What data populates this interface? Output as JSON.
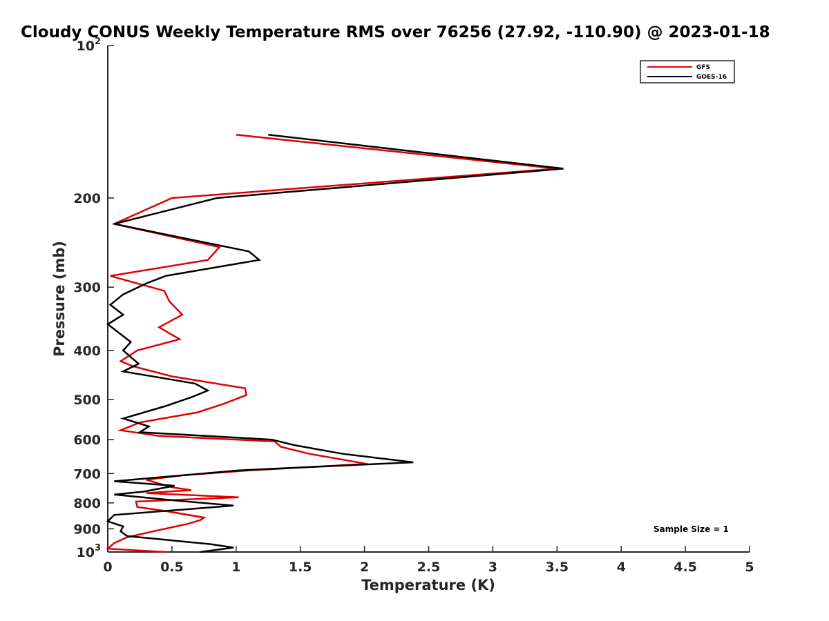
{
  "chart_data": {
    "type": "line",
    "title": "Cloudy CONUS Weekly Temperature RMS over 76256 (27.92, -110.90) @ 2023-01-18",
    "xlabel": "Temperature (K)",
    "ylabel": "Pressure (mb)",
    "xlim": [
      0,
      5
    ],
    "ylim": [
      100,
      1000
    ],
    "yscale": "log",
    "y_reversed": true,
    "xticks": [
      "0",
      "0.5",
      "1",
      "1.5",
      "2",
      "2.5",
      "3",
      "3.5",
      "4",
      "4.5",
      "5"
    ],
    "yticks": [
      {
        "value": 100,
        "base": "10",
        "exp": "2"
      },
      {
        "value": 200,
        "label": "200"
      },
      {
        "value": 300,
        "label": "300"
      },
      {
        "value": 400,
        "label": "400"
      },
      {
        "value": 500,
        "label": "500"
      },
      {
        "value": 600,
        "label": "600"
      },
      {
        "value": 700,
        "label": "700"
      },
      {
        "value": 800,
        "label": "800"
      },
      {
        "value": 900,
        "label": "900"
      },
      {
        "value": 1000,
        "base": "10",
        "exp": "3"
      }
    ],
    "legend": "top-right",
    "annotation": "Sample Size = 1",
    "series": [
      {
        "name": "GFS",
        "color": "#e00000",
        "points": [
          [
            1.0,
            150
          ],
          [
            3.5,
            175
          ],
          [
            0.5,
            200
          ],
          [
            0.05,
            225
          ],
          [
            0.87,
            250
          ],
          [
            0.78,
            265
          ],
          [
            0.02,
            285
          ],
          [
            0.44,
            305
          ],
          [
            0.48,
            320
          ],
          [
            0.58,
            340
          ],
          [
            0.4,
            360
          ],
          [
            0.56,
            380
          ],
          [
            0.23,
            400
          ],
          [
            0.1,
            420
          ],
          [
            0.2,
            430
          ],
          [
            0.5,
            450
          ],
          [
            1.07,
            475
          ],
          [
            1.08,
            490
          ],
          [
            0.9,
            510
          ],
          [
            0.7,
            530
          ],
          [
            0.25,
            555
          ],
          [
            0.1,
            575
          ],
          [
            0.4,
            590
          ],
          [
            1.3,
            605
          ],
          [
            1.35,
            620
          ],
          [
            1.57,
            640
          ],
          [
            2.02,
            670
          ],
          [
            1.1,
            690
          ],
          [
            0.6,
            705
          ],
          [
            0.3,
            720
          ],
          [
            0.5,
            745
          ],
          [
            0.65,
            755
          ],
          [
            0.3,
            765
          ],
          [
            1.02,
            780
          ],
          [
            0.22,
            795
          ],
          [
            0.23,
            815
          ],
          [
            0.45,
            830
          ],
          [
            0.75,
            855
          ],
          [
            0.72,
            865
          ],
          [
            0.62,
            880
          ],
          [
            0.4,
            905
          ],
          [
            0.15,
            935
          ],
          [
            0.05,
            960
          ],
          [
            0.0,
            985
          ],
          [
            0.45,
            1000
          ]
        ]
      },
      {
        "name": "GOES-16",
        "color": "#000000",
        "points": [
          [
            1.25,
            150
          ],
          [
            3.55,
            175
          ],
          [
            0.85,
            200
          ],
          [
            0.05,
            225
          ],
          [
            1.1,
            255
          ],
          [
            1.18,
            265
          ],
          [
            0.45,
            285
          ],
          [
            0.3,
            295
          ],
          [
            0.12,
            310
          ],
          [
            0.02,
            325
          ],
          [
            0.12,
            340
          ],
          [
            0.0,
            355
          ],
          [
            0.18,
            385
          ],
          [
            0.12,
            400
          ],
          [
            0.24,
            425
          ],
          [
            0.12,
            440
          ],
          [
            0.68,
            465
          ],
          [
            0.78,
            480
          ],
          [
            0.65,
            495
          ],
          [
            0.45,
            515
          ],
          [
            0.12,
            545
          ],
          [
            0.32,
            565
          ],
          [
            0.25,
            580
          ],
          [
            1.28,
            600
          ],
          [
            1.45,
            615
          ],
          [
            1.83,
            640
          ],
          [
            2.38,
            665
          ],
          [
            1.02,
            690
          ],
          [
            0.05,
            725
          ],
          [
            0.52,
            740
          ],
          [
            0.28,
            760
          ],
          [
            0.05,
            770
          ],
          [
            0.5,
            790
          ],
          [
            0.98,
            810
          ],
          [
            0.05,
            845
          ],
          [
            0.0,
            870
          ],
          [
            0.12,
            890
          ],
          [
            0.1,
            910
          ],
          [
            0.15,
            930
          ],
          [
            0.8,
            965
          ],
          [
            0.98,
            980
          ],
          [
            0.72,
            1000
          ]
        ]
      }
    ]
  }
}
